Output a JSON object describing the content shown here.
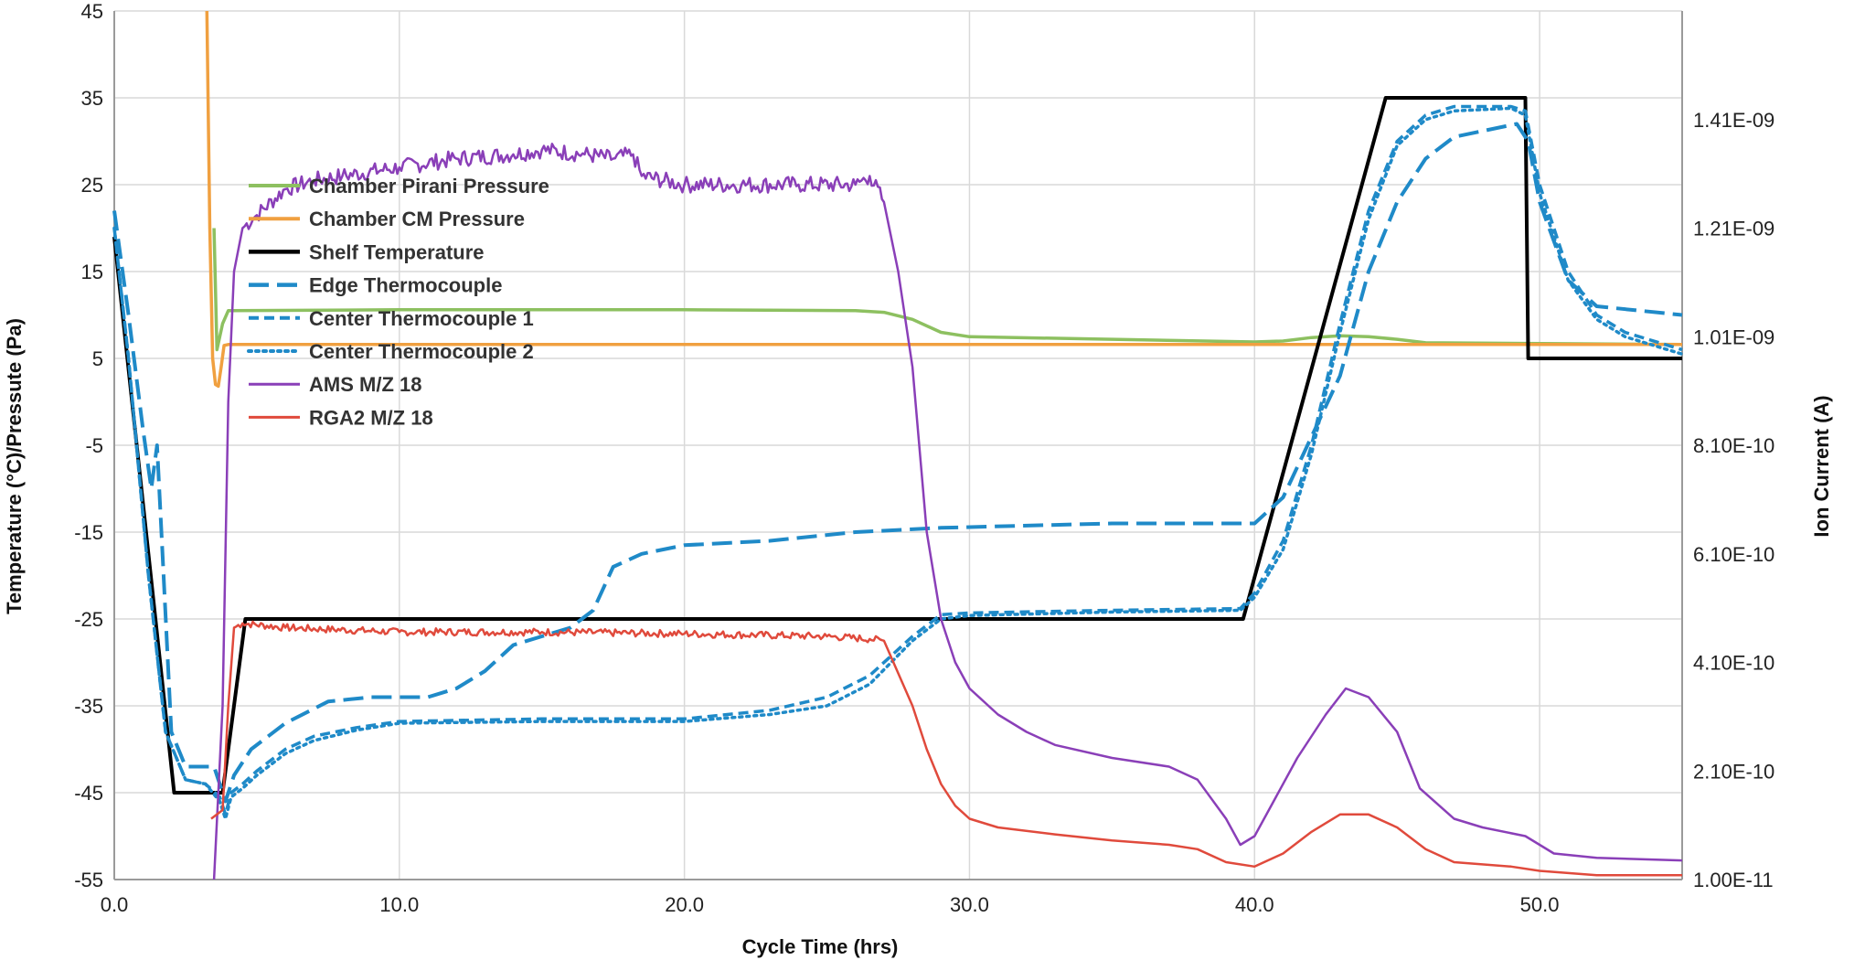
{
  "chart_data": {
    "type": "line",
    "title": "",
    "xlabel": "Cycle Time (hrs)",
    "ylabel_left": "Temperature (°C)/Pressute  (Pa)",
    "ylabel_right": "Ion Current (A)",
    "xlim": [
      0,
      55
    ],
    "ylim_left": [
      -55,
      45
    ],
    "ylim_right": [
      1e-11,
      1.61e-09
    ],
    "x_ticks": [
      {
        "value": 0,
        "label": "0.0"
      },
      {
        "value": 10,
        "label": "10.0"
      },
      {
        "value": 20,
        "label": "20.0"
      },
      {
        "value": 30,
        "label": "30.0"
      },
      {
        "value": 40,
        "label": "40.0"
      },
      {
        "value": 50,
        "label": "50.0"
      }
    ],
    "y_left_ticks": [
      {
        "value": 45,
        "label": "45"
      },
      {
        "value": 35,
        "label": "35"
      },
      {
        "value": 25,
        "label": "25"
      },
      {
        "value": 15,
        "label": "15"
      },
      {
        "value": 5,
        "label": "5"
      },
      {
        "value": -5,
        "label": "-5"
      },
      {
        "value": -15,
        "label": "-15"
      },
      {
        "value": -25,
        "label": "-25"
      },
      {
        "value": -35,
        "label": "-35"
      },
      {
        "value": -45,
        "label": "-45"
      },
      {
        "value": -55,
        "label": "-55"
      }
    ],
    "y_right_ticks": [
      {
        "value": 1.41e-09,
        "label": "1.41E-09"
      },
      {
        "value": 1.21e-09,
        "label": "1.21E-09"
      },
      {
        "value": 1.01e-09,
        "label": "1.01E-09"
      },
      {
        "value": 8.1e-10,
        "label": "8.10E-10"
      },
      {
        "value": 6.1e-10,
        "label": "6.10E-10"
      },
      {
        "value": 4.1e-10,
        "label": "4.10E-10"
      },
      {
        "value": 2.1e-10,
        "label": "2.10E-10"
      },
      {
        "value": 1e-11,
        "label": "1.00E-11"
      }
    ],
    "grid": true,
    "legend_position": "upper-left inside plot",
    "series": [
      {
        "name": "Chamber Pirani Pressure",
        "axis": "left",
        "color": "#8dc060",
        "width": 3.5,
        "dash": "",
        "points": [
          [
            3.5,
            20
          ],
          [
            3.6,
            6
          ],
          [
            3.8,
            9
          ],
          [
            4,
            10.5
          ],
          [
            10,
            10.6
          ],
          [
            20,
            10.6
          ],
          [
            26,
            10.5
          ],
          [
            27,
            10.3
          ],
          [
            28,
            9.5
          ],
          [
            29,
            8
          ],
          [
            30,
            7.5
          ],
          [
            40,
            6.9
          ],
          [
            41,
            7
          ],
          [
            42,
            7.4
          ],
          [
            43,
            7.6
          ],
          [
            44,
            7.5
          ],
          [
            45,
            7.2
          ],
          [
            46,
            6.8
          ],
          [
            55,
            6.6
          ]
        ]
      },
      {
        "name": "Chamber CM Pressure",
        "axis": "left",
        "color": "#f0a040",
        "width": 3.5,
        "dash": "",
        "points": [
          [
            3.25,
            45
          ],
          [
            3.35,
            20
          ],
          [
            3.45,
            5
          ],
          [
            3.55,
            2
          ],
          [
            3.65,
            1.8
          ],
          [
            3.75,
            4
          ],
          [
            3.85,
            6.5
          ],
          [
            4,
            6.6
          ],
          [
            55,
            6.6
          ]
        ]
      },
      {
        "name": "Shelf Temperature",
        "axis": "left",
        "color": "#000000",
        "width": 4,
        "dash": "",
        "points": [
          [
            0,
            19
          ],
          [
            2.1,
            -45
          ],
          [
            3.8,
            -45
          ],
          [
            4.6,
            -25
          ],
          [
            39.6,
            -25
          ],
          [
            44.6,
            35
          ],
          [
            49.5,
            35
          ],
          [
            49.6,
            5
          ],
          [
            55,
            5
          ]
        ]
      },
      {
        "name": "Edge Thermocouple",
        "axis": "left",
        "color": "#1f8ac8",
        "width": 4,
        "dash": "22,9",
        "points": [
          [
            0,
            22
          ],
          [
            0.5,
            10
          ],
          [
            1,
            -3
          ],
          [
            1.3,
            -10
          ],
          [
            1.5,
            -5
          ],
          [
            1.7,
            -18
          ],
          [
            2,
            -38
          ],
          [
            2.5,
            -42
          ],
          [
            3.5,
            -42
          ],
          [
            3.9,
            -46
          ],
          [
            4.2,
            -43
          ],
          [
            4.8,
            -40
          ],
          [
            6,
            -37
          ],
          [
            7.5,
            -34.5
          ],
          [
            9,
            -34
          ],
          [
            11,
            -34
          ],
          [
            12,
            -33
          ],
          [
            13,
            -31
          ],
          [
            14,
            -28
          ],
          [
            15,
            -27
          ],
          [
            16,
            -26
          ],
          [
            16.8,
            -24
          ],
          [
            17.5,
            -19
          ],
          [
            18.5,
            -17.5
          ],
          [
            20,
            -16.5
          ],
          [
            23,
            -16
          ],
          [
            26,
            -15
          ],
          [
            29,
            -14.5
          ],
          [
            35,
            -14
          ],
          [
            40,
            -14
          ],
          [
            41,
            -11
          ],
          [
            43,
            3
          ],
          [
            44,
            15
          ],
          [
            45,
            23
          ],
          [
            46,
            28
          ],
          [
            47,
            30.5
          ],
          [
            49.2,
            32
          ],
          [
            49.6,
            30
          ],
          [
            50,
            23
          ],
          [
            51,
            14
          ],
          [
            52,
            11
          ],
          [
            55,
            10
          ]
        ]
      },
      {
        "name": "Center Thermocouple 1",
        "axis": "left",
        "color": "#1f8ac8",
        "width": 3.5,
        "dash": "11,6",
        "points": [
          [
            0,
            20
          ],
          [
            0.5,
            5
          ],
          [
            1.2,
            -20
          ],
          [
            1.8,
            -38
          ],
          [
            2.5,
            -43.5
          ],
          [
            3.2,
            -44
          ],
          [
            3.7,
            -45.5
          ],
          [
            3.9,
            -47.5
          ],
          [
            4.1,
            -45
          ],
          [
            4.5,
            -44
          ],
          [
            5,
            -42.5
          ],
          [
            6,
            -40
          ],
          [
            7,
            -38.5
          ],
          [
            8.5,
            -37.5
          ],
          [
            10,
            -36.8
          ],
          [
            15,
            -36.5
          ],
          [
            20,
            -36.5
          ],
          [
            23,
            -35.5
          ],
          [
            25,
            -34
          ],
          [
            26.5,
            -31.5
          ],
          [
            28,
            -27
          ],
          [
            29,
            -24.5
          ],
          [
            30,
            -24.3
          ],
          [
            35,
            -24
          ],
          [
            39.5,
            -23.8
          ],
          [
            40,
            -22
          ],
          [
            41,
            -16
          ],
          [
            42,
            -5
          ],
          [
            43,
            9
          ],
          [
            44,
            22
          ],
          [
            45,
            30
          ],
          [
            46,
            33
          ],
          [
            47,
            34
          ],
          [
            49,
            34
          ],
          [
            49.5,
            33.5
          ],
          [
            50,
            25
          ],
          [
            51,
            15
          ],
          [
            52,
            10
          ],
          [
            53,
            8
          ],
          [
            55,
            6
          ]
        ]
      },
      {
        "name": "Center Thermocouple 2",
        "axis": "left",
        "color": "#1f8ac8",
        "width": 3.5,
        "dash": "3,5",
        "points": [
          [
            0,
            20
          ],
          [
            0.5,
            5
          ],
          [
            1.2,
            -20
          ],
          [
            1.8,
            -38
          ],
          [
            2.5,
            -43.5
          ],
          [
            3.2,
            -44
          ],
          [
            3.7,
            -46
          ],
          [
            3.9,
            -48
          ],
          [
            4.1,
            -45.5
          ],
          [
            4.5,
            -44.5
          ],
          [
            5,
            -43
          ],
          [
            6,
            -40.5
          ],
          [
            7,
            -39
          ],
          [
            8.5,
            -37.8
          ],
          [
            10,
            -37
          ],
          [
            15,
            -36.8
          ],
          [
            20,
            -36.8
          ],
          [
            23,
            -36
          ],
          [
            25,
            -35
          ],
          [
            26.5,
            -32.5
          ],
          [
            28,
            -27.5
          ],
          [
            29,
            -25
          ],
          [
            30,
            -24.6
          ],
          [
            35,
            -24.2
          ],
          [
            39.5,
            -24
          ],
          [
            40,
            -22.5
          ],
          [
            41,
            -17
          ],
          [
            42,
            -6
          ],
          [
            43,
            8
          ],
          [
            44,
            21
          ],
          [
            45,
            29.5
          ],
          [
            46,
            32.5
          ],
          [
            47,
            33.5
          ],
          [
            49,
            33.8
          ],
          [
            49.5,
            33
          ],
          [
            50,
            24
          ],
          [
            51,
            14
          ],
          [
            52,
            9.5
          ],
          [
            53,
            7.5
          ],
          [
            55,
            5.5
          ]
        ]
      },
      {
        "name": "AMS M/Z 18",
        "axis": "left",
        "color": "#8a3fb8",
        "width": 2.5,
        "dash": "",
        "jitter": [
          [
            4.5,
            27,
            0.8
          ]
        ],
        "points": [
          [
            3.5,
            -55
          ],
          [
            3.8,
            -35
          ],
          [
            4,
            0
          ],
          [
            4.2,
            15
          ],
          [
            4.5,
            20
          ],
          [
            5,
            21.5
          ],
          [
            6,
            24.5
          ],
          [
            7,
            25.5
          ],
          [
            8,
            26
          ],
          [
            10,
            27
          ],
          [
            12,
            28
          ],
          [
            14,
            28.5
          ],
          [
            15,
            29
          ],
          [
            16.5,
            28.5
          ],
          [
            17.5,
            28
          ],
          [
            18.2,
            28.5
          ],
          [
            18.5,
            26
          ],
          [
            20,
            25
          ],
          [
            22,
            25
          ],
          [
            24,
            25
          ],
          [
            26,
            25
          ],
          [
            26.5,
            26
          ],
          [
            27,
            23
          ],
          [
            27.5,
            15
          ],
          [
            28,
            4
          ],
          [
            28.5,
            -15
          ],
          [
            29,
            -25
          ],
          [
            29.5,
            -30
          ],
          [
            30,
            -33
          ],
          [
            31,
            -36
          ],
          [
            32,
            -38
          ],
          [
            33,
            -39.5
          ],
          [
            35,
            -41
          ],
          [
            37,
            -42
          ],
          [
            38,
            -43.5
          ],
          [
            39,
            -48
          ],
          [
            39.5,
            -51
          ],
          [
            40,
            -50
          ],
          [
            40.5,
            -47
          ],
          [
            41.5,
            -41
          ],
          [
            42.5,
            -36
          ],
          [
            43.2,
            -33
          ],
          [
            44,
            -34
          ],
          [
            45,
            -38
          ],
          [
            45.8,
            -44.5
          ],
          [
            47,
            -48
          ],
          [
            48,
            -49
          ],
          [
            49.5,
            -50
          ],
          [
            50.5,
            -52
          ],
          [
            52,
            -52.5
          ],
          [
            55,
            -52.8
          ]
        ]
      },
      {
        "name": "RGA2 M/Z 18",
        "axis": "left",
        "color": "#e04a3c",
        "width": 2.5,
        "dash": "",
        "jitter": [
          [
            4.2,
            27,
            0.35
          ]
        ],
        "points": [
          [
            3.4,
            -48
          ],
          [
            3.8,
            -47
          ],
          [
            4,
            -35
          ],
          [
            4.2,
            -26
          ],
          [
            4.5,
            -25.5
          ],
          [
            6,
            -26
          ],
          [
            10,
            -26.5
          ],
          [
            15,
            -26.5
          ],
          [
            20,
            -26.7
          ],
          [
            25,
            -27
          ],
          [
            26.5,
            -27.3
          ],
          [
            27,
            -27.5
          ],
          [
            28,
            -35
          ],
          [
            28.5,
            -40
          ],
          [
            29,
            -44
          ],
          [
            29.5,
            -46.5
          ],
          [
            30,
            -48
          ],
          [
            31,
            -49
          ],
          [
            33,
            -49.8
          ],
          [
            35,
            -50.5
          ],
          [
            37,
            -51
          ],
          [
            38,
            -51.5
          ],
          [
            39,
            -53
          ],
          [
            40,
            -53.5
          ],
          [
            41,
            -52
          ],
          [
            42,
            -49.5
          ],
          [
            43,
            -47.5
          ],
          [
            44,
            -47.5
          ],
          [
            45,
            -49
          ],
          [
            46,
            -51.5
          ],
          [
            47,
            -53
          ],
          [
            49,
            -53.5
          ],
          [
            50,
            -54
          ],
          [
            52,
            -54.5
          ],
          [
            55,
            -54.5
          ]
        ]
      }
    ]
  }
}
